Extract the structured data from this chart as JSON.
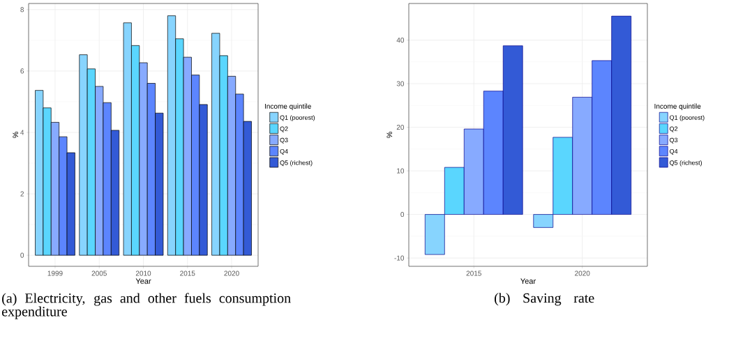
{
  "chart_data": [
    {
      "type": "bar",
      "title": "(a) Electricity, gas and other fuels consumption expenditure",
      "xlabel": "Year",
      "ylabel": "%",
      "legend_title": "Income quintile",
      "categories": [
        "1999",
        "2005",
        "2010",
        "2015",
        "2020"
      ],
      "series": [
        {
          "name": "Q1 (poorest)",
          "color": "#87d4fe",
          "values": [
            5.37,
            6.53,
            7.57,
            7.8,
            7.23
          ]
        },
        {
          "name": "Q2",
          "color": "#5ad6fe",
          "values": [
            4.8,
            6.07,
            6.83,
            7.05,
            6.5
          ]
        },
        {
          "name": "Q3",
          "color": "#87aaff",
          "values": [
            4.33,
            5.5,
            6.27,
            6.45,
            5.83
          ]
        },
        {
          "name": "Q4",
          "color": "#5c85fe",
          "values": [
            3.86,
            4.97,
            5.6,
            5.87,
            5.25
          ]
        },
        {
          "name": "Q5 (richest)",
          "color": "#335ad6",
          "values": [
            3.34,
            4.07,
            4.63,
            4.91,
            4.36
          ]
        }
      ],
      "ylim": [
        -0.36,
        8.2
      ],
      "yticks": [
        0,
        2,
        4,
        6,
        8
      ],
      "grid": true,
      "legend": "right"
    },
    {
      "type": "bar",
      "title": "(b) Saving rate",
      "xlabel": "Year",
      "ylabel": "%",
      "legend_title": "Income quintile",
      "categories": [
        "2015",
        "2020"
      ],
      "series": [
        {
          "name": "Q1 (poorest)",
          "color": "#87d4fe",
          "values": [
            -9.2,
            -3.0
          ]
        },
        {
          "name": "Q2",
          "color": "#5ad6fe",
          "values": [
            10.8,
            17.7
          ]
        },
        {
          "name": "Q3",
          "color": "#87aaff",
          "values": [
            19.6,
            26.9
          ]
        },
        {
          "name": "Q4",
          "color": "#5c85fe",
          "values": [
            28.3,
            35.3
          ]
        },
        {
          "name": "Q5 (richest)",
          "color": "#335ad6",
          "values": [
            38.7,
            45.5
          ]
        }
      ],
      "ylim": [
        -11.9,
        48.4
      ],
      "yticks": [
        -10,
        0,
        10,
        20,
        30,
        40
      ],
      "grid": true,
      "legend": "right"
    }
  ]
}
